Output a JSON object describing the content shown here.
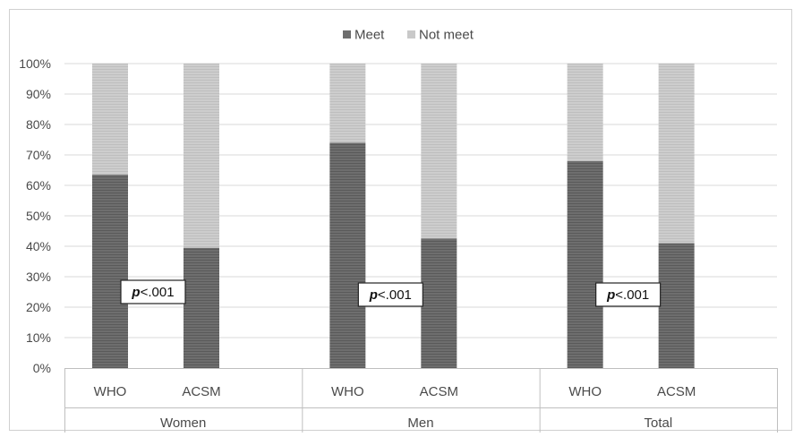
{
  "chart_data": {
    "type": "bar",
    "stacked": true,
    "groups": [
      "Women",
      "Men",
      "Total"
    ],
    "categories": [
      "WHO",
      "ACSM"
    ],
    "series": [
      {
        "name": "Meet",
        "values": [
          [
            63.5,
            39.5
          ],
          [
            74,
            42.5
          ],
          [
            68,
            41
          ]
        ]
      },
      {
        "name": "Not meet",
        "values": [
          [
            36.5,
            60.5
          ],
          [
            26,
            57.5
          ],
          [
            32,
            59
          ]
        ]
      }
    ],
    "annotations": [
      {
        "group": "Women",
        "text": "<.001",
        "prefix": "p"
      },
      {
        "group": "Men",
        "text": "<.001",
        "prefix": "p"
      },
      {
        "group": "Total",
        "text": "<.001",
        "prefix": "p"
      }
    ],
    "y_ticks": [
      "0%",
      "10%",
      "20%",
      "30%",
      "40%",
      "50%",
      "60%",
      "70%",
      "80%",
      "90%",
      "100%"
    ],
    "ylim": [
      0,
      100
    ],
    "legend_position": "top",
    "grid": true,
    "colors": {
      "meet": "#6e6e6e",
      "not_meet": "#c9c9c9"
    }
  }
}
